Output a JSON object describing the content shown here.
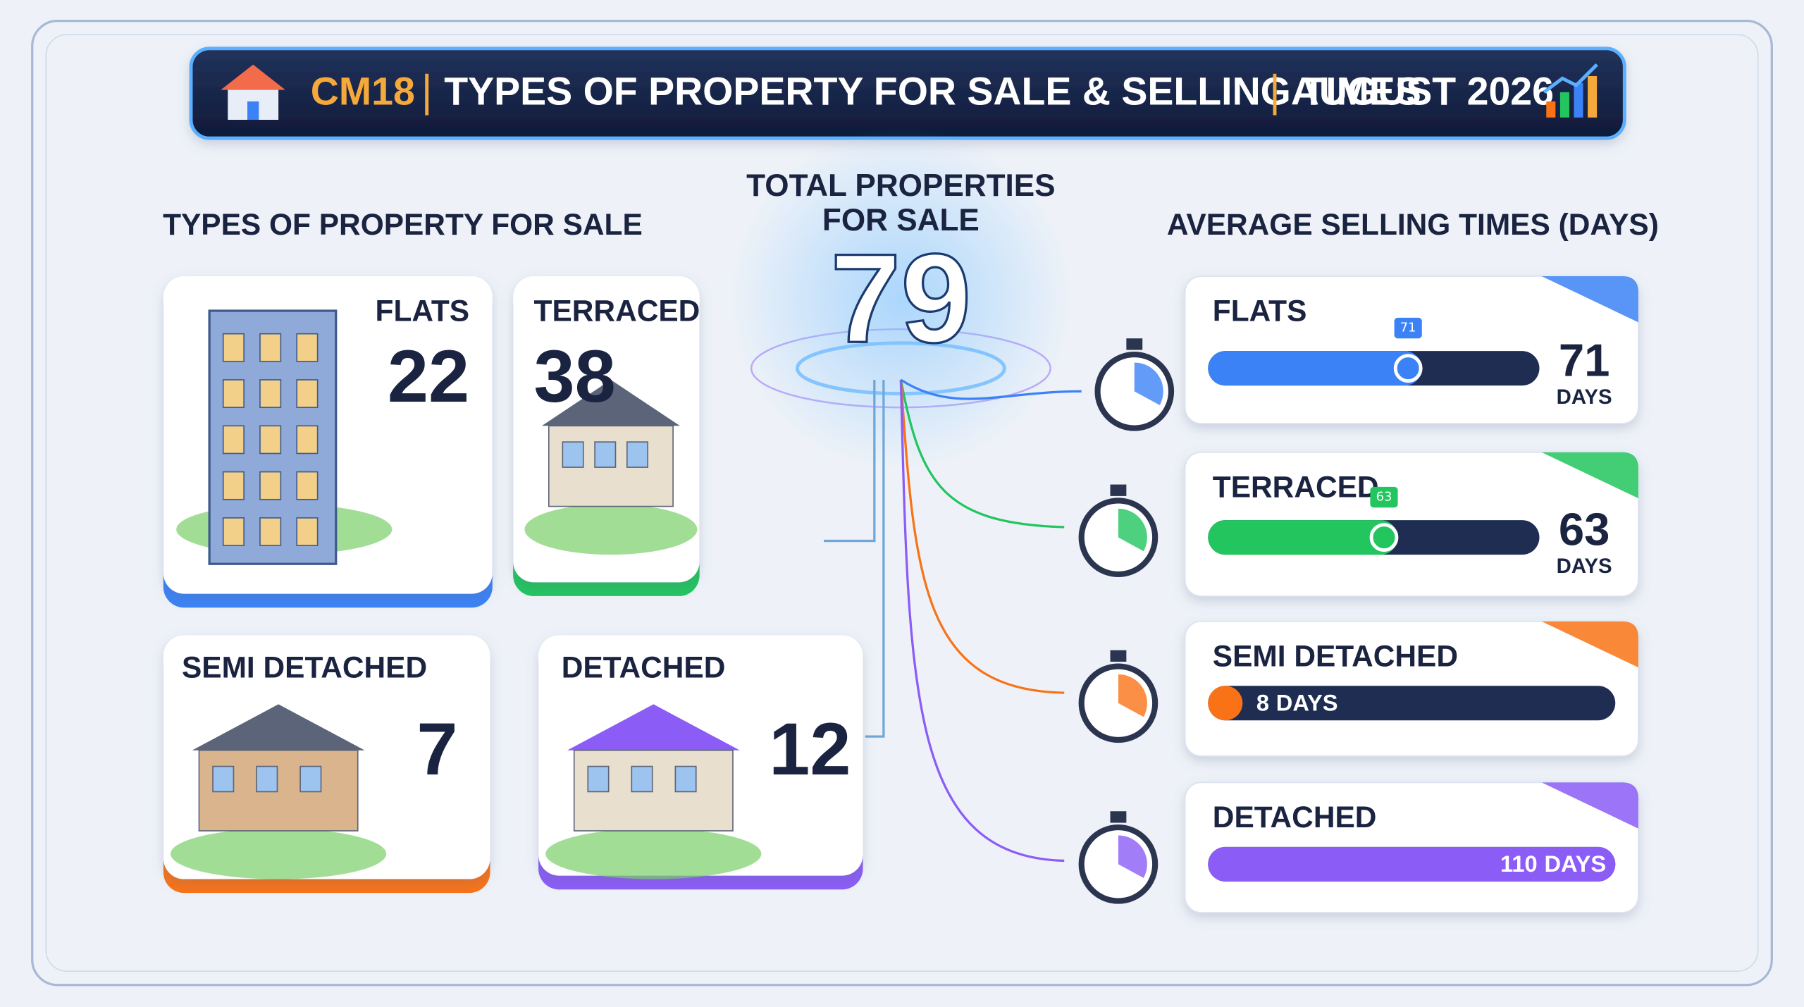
{
  "header": {
    "code": "CM18",
    "title": "TYPES OF PROPERTY FOR SALE & SELLING TIMES",
    "date": "AUGUST 2026"
  },
  "property_types": {
    "title": "TYPES OF PROPERTY FOR SALE",
    "items": [
      {
        "name": "FLATS",
        "count": 22,
        "color": "#3b82f6"
      },
      {
        "name": "TERRACED",
        "count": 38,
        "color": "#22c55e"
      },
      {
        "name": "SEMI DETACHED",
        "count": 7,
        "color": "#f97316"
      },
      {
        "name": "DETACHED",
        "count": 12,
        "color": "#8b5cf6"
      }
    ]
  },
  "total": {
    "label": [
      "TOTAL PROPERTIES",
      "FOR SALE"
    ],
    "count": 79
  },
  "selling_times": {
    "title": "AVERAGE SELLING TIMES (DAYS)",
    "unit": "DAYS",
    "items": [
      {
        "name": "FLATS",
        "days": 71,
        "color": "#3b82f6"
      },
      {
        "name": "TERRACED",
        "days": 63,
        "color": "#22c55e"
      },
      {
        "name": "SEMI DETACHED",
        "days": 8,
        "color": "#f97316"
      },
      {
        "name": "DETACHED",
        "days": 110,
        "color": "#8b5cf6"
      }
    ]
  }
}
